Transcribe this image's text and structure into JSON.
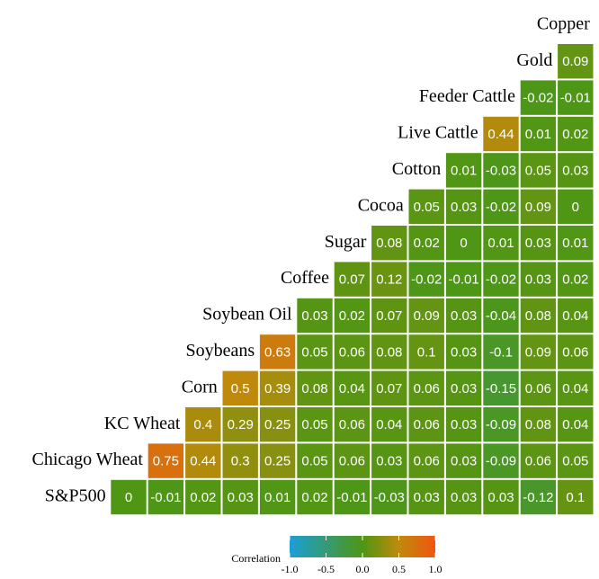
{
  "chart_data": {
    "type": "heatmap",
    "variables": [
      "S&P500",
      "Chicago Wheat",
      "KC Wheat",
      "Corn",
      "Soybeans",
      "Soybean Oil",
      "Coffee",
      "Sugar",
      "Cocoa",
      "Cotton",
      "Live Cattle",
      "Feeder Cattle",
      "Gold",
      "Copper"
    ],
    "matrix": [
      [
        0,
        -0.01,
        0.02,
        0.03,
        0.01,
        0.02,
        -0.01,
        -0.03,
        0.03,
        0.03,
        0.03,
        -0.12,
        0.1
      ],
      [
        0.75,
        0.44,
        0.3,
        0.25,
        0.05,
        0.06,
        0.03,
        0.06,
        0.03,
        -0.09,
        0.06,
        0.05
      ],
      [
        0.4,
        0.29,
        0.25,
        0.05,
        0.06,
        0.04,
        0.06,
        0.03,
        -0.09,
        0.08,
        0.04
      ],
      [
        0.5,
        0.39,
        0.08,
        0.04,
        0.07,
        0.06,
        0.03,
        -0.15,
        0.06,
        0.04
      ],
      [
        0.63,
        0.05,
        0.06,
        0.08,
        0.1,
        0.03,
        -0.1,
        0.09,
        0.06
      ],
      [
        0.03,
        0.02,
        0.07,
        0.09,
        0.03,
        -0.04,
        0.08,
        0.04
      ],
      [
        0.07,
        0.12,
        -0.02,
        -0.01,
        -0.02,
        0.03,
        0.02
      ],
      [
        0.08,
        0.02,
        0,
        0.01,
        0.03,
        0.01
      ],
      [
        0.05,
        0.03,
        -0.02,
        0.09,
        0
      ],
      [
        0.01,
        -0.03,
        0.05,
        0.03
      ],
      [
        0.44,
        0.01,
        0.02
      ],
      [
        -0.02,
        -0.01
      ],
      [
        0.09
      ]
    ],
    "legend_title": "Correlation",
    "clim": [
      -1,
      1
    ],
    "colorscale": [
      [
        -1,
        "#1a9fd6"
      ],
      [
        0,
        "#4f9614"
      ],
      [
        0.5,
        "#bf8a0c"
      ],
      [
        1,
        "#f25512"
      ]
    ],
    "cticks": [
      {
        "value": -1,
        "label": "-1.0"
      },
      {
        "value": -0.5,
        "label": "-0.5"
      },
      {
        "value": 0,
        "label": "0.0"
      },
      {
        "value": 0.5,
        "label": "0.5"
      },
      {
        "value": 1,
        "label": "1.0"
      }
    ]
  }
}
